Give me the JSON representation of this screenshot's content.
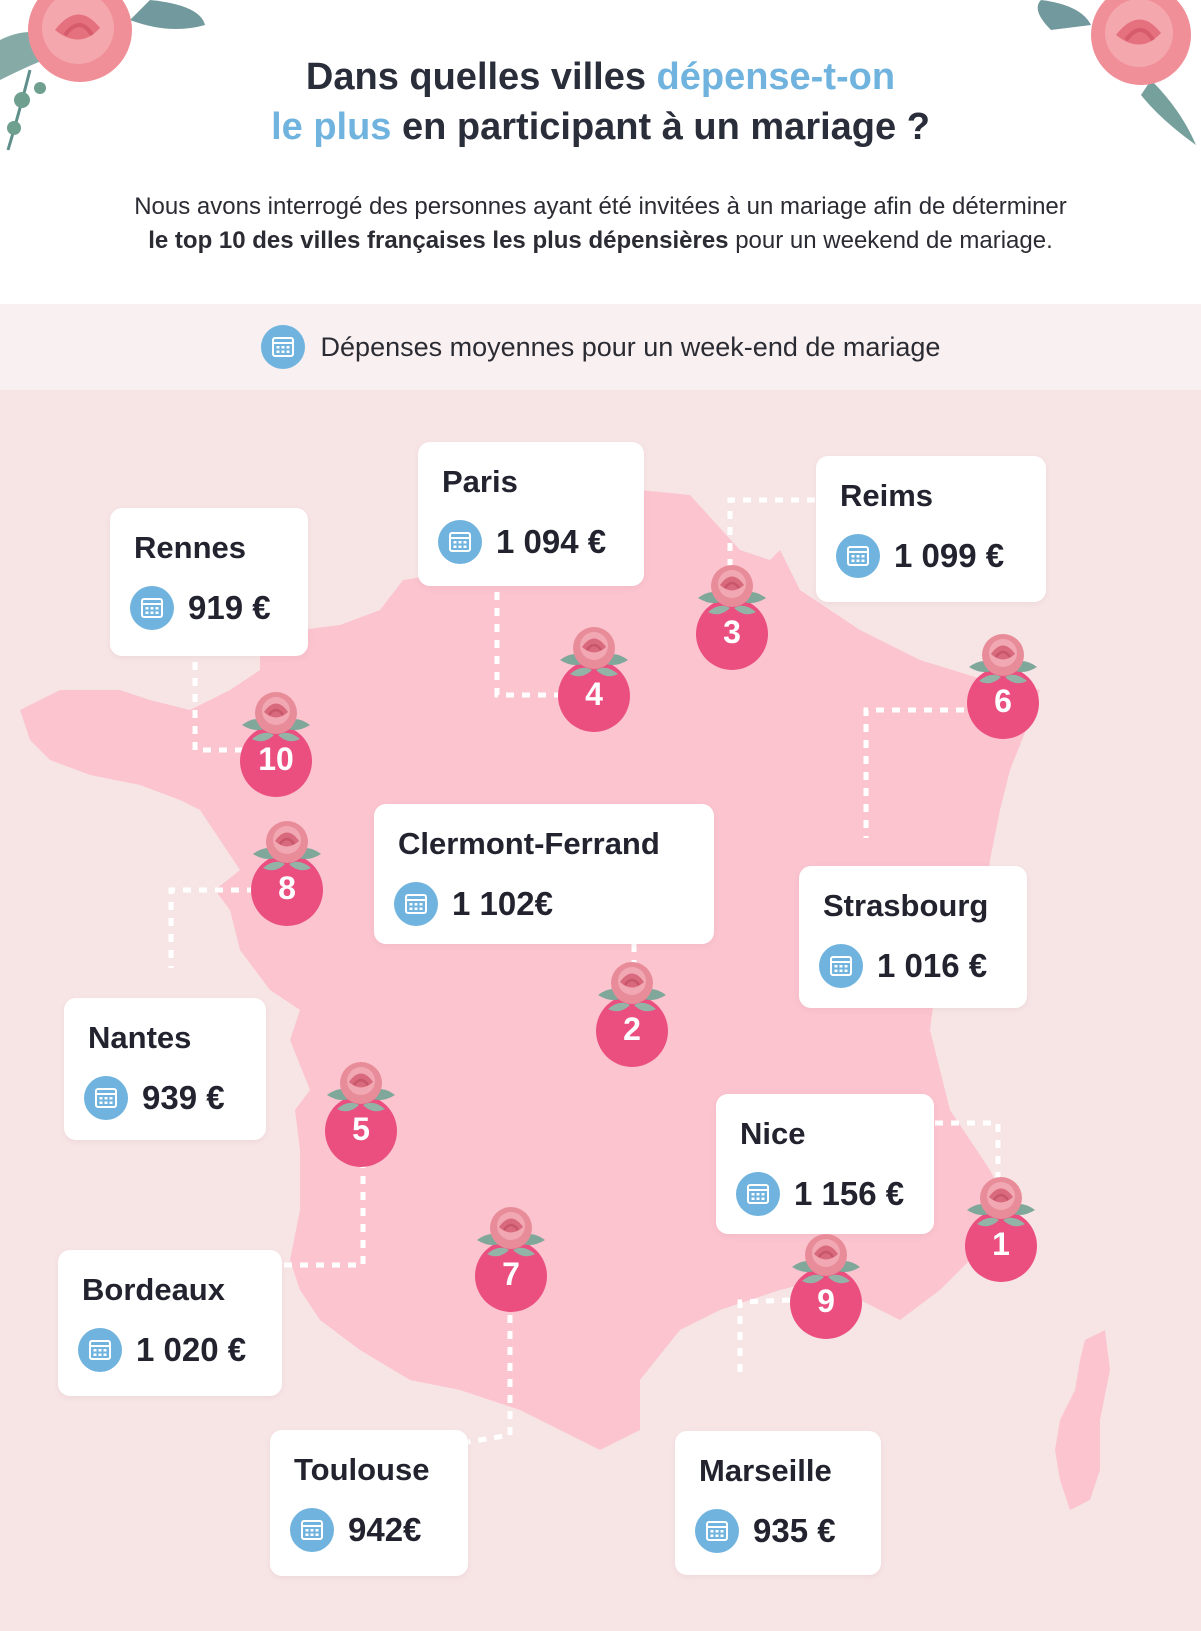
{
  "header": {
    "title_line1_part1": "Dans quelles villes ",
    "title_line1_accent": "dépense-t-on",
    "title_line2_accent": "le plus",
    "title_line2_part2": " en participant à un mariage ?"
  },
  "intro": {
    "line1": "Nous avons interrogé des personnes ayant été invitées à un mariage afin de déterminer",
    "line2_bold": "le top 10 des villes françaises les plus dépensières",
    "line2_rest": " pour un weekend de mariage."
  },
  "legend": {
    "icon": "calendar-icon",
    "label": "Dépenses moyennes pour un week-end de mariage"
  },
  "colors": {
    "accent": "#6fb3de",
    "marker": "#ea4f80",
    "map_land": "#fbc4cf",
    "map_background": "#f7e5e6"
  },
  "cities": [
    {
      "rank": "1",
      "name": "Nice",
      "amount": "1 156 €"
    },
    {
      "rank": "2",
      "name": "Clermont-Ferrand",
      "amount": "1 102€"
    },
    {
      "rank": "3",
      "name": "Reims",
      "amount": "1 099 €"
    },
    {
      "rank": "4",
      "name": "Paris",
      "amount": "1 094 €"
    },
    {
      "rank": "5",
      "name": "Bordeaux",
      "amount": "1 020 €"
    },
    {
      "rank": "6",
      "name": "Strasbourg",
      "amount": "1 016 €"
    },
    {
      "rank": "7",
      "name": "Toulouse",
      "amount": "942€"
    },
    {
      "rank": "8",
      "name": "Nantes",
      "amount": "939 €"
    },
    {
      "rank": "9",
      "name": "Marseille",
      "amount": "935 €"
    },
    {
      "rank": "10",
      "name": "Rennes",
      "amount": "919 €"
    }
  ]
}
